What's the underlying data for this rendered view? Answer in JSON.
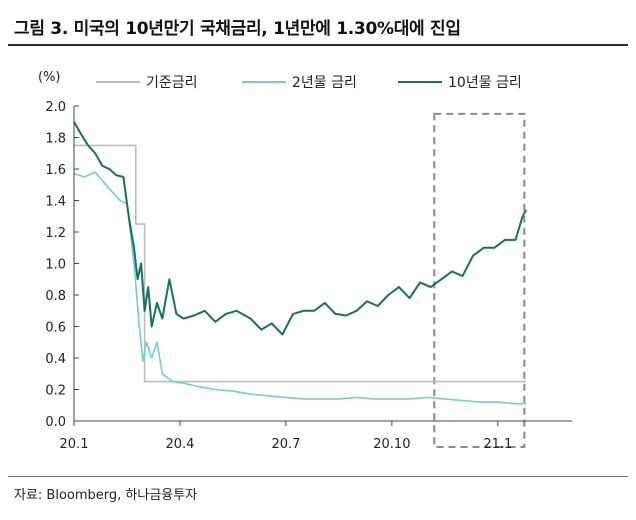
{
  "title": "그림 3. 미국의 10년만기 국채금리, 1년만에 1.30%대에 진입",
  "source": "자료: Bloomberg, 하나금융투자",
  "chart_data": {
    "type": "line",
    "title": "그림 3. 미국의 10년만기 국채금리, 1년만에 1.30%대에 진입",
    "ylabel": "(%)",
    "xlabel": "",
    "ylim": [
      0.0,
      2.0
    ],
    "yticks": [
      "0.0",
      "0.2",
      "0.4",
      "0.6",
      "0.8",
      "1.0",
      "1.2",
      "1.4",
      "1.6",
      "1.8",
      "2.0"
    ],
    "xlim": [
      0,
      14.1
    ],
    "xticks": [
      {
        "label": "20.1",
        "x": 0
      },
      {
        "label": "20.4",
        "x": 3
      },
      {
        "label": "20.7",
        "x": 6
      },
      {
        "label": "20.10",
        "x": 9
      },
      {
        "label": "21.1",
        "x": 12
      }
    ],
    "legend_position": "top",
    "highlight_box": {
      "x_range": [
        10.2,
        12.75
      ],
      "y_range": [
        0.0,
        1.95
      ],
      "style": "dashed"
    },
    "series": [
      {
        "name": "기준금리",
        "color": "#bdbdbd",
        "x": [
          0,
          1.75,
          1.75,
          2.0,
          2.0,
          2.2,
          2.2,
          12.8
        ],
        "values": [
          1.75,
          1.75,
          1.25,
          1.25,
          0.25,
          0.25,
          0.25,
          0.25
        ]
      },
      {
        "name": "2년물 금리",
        "color": "#6fd3c6",
        "x": [
          0,
          0.3,
          0.6,
          0.9,
          1.1,
          1.3,
          1.5,
          1.7,
          1.85,
          1.95,
          2.05,
          2.2,
          2.35,
          2.5,
          2.8,
          3.1,
          3.5,
          4.0,
          4.5,
          5.0,
          5.5,
          6.0,
          6.5,
          7.0,
          7.5,
          8.0,
          8.5,
          9.0,
          9.5,
          10.0,
          10.5,
          11.0,
          11.5,
          12.0,
          12.5,
          12.8
        ],
        "values": [
          1.57,
          1.55,
          1.58,
          1.5,
          1.45,
          1.4,
          1.38,
          1.0,
          0.6,
          0.38,
          0.5,
          0.4,
          0.5,
          0.3,
          0.25,
          0.24,
          0.22,
          0.2,
          0.19,
          0.17,
          0.16,
          0.15,
          0.14,
          0.14,
          0.14,
          0.15,
          0.14,
          0.14,
          0.14,
          0.15,
          0.14,
          0.13,
          0.12,
          0.12,
          0.11,
          0.11
        ]
      },
      {
        "name": "10년물 금리",
        "color": "#18715f",
        "x": [
          0,
          0.2,
          0.4,
          0.6,
          0.8,
          1.0,
          1.2,
          1.4,
          1.55,
          1.7,
          1.8,
          1.9,
          2.0,
          2.1,
          2.2,
          2.35,
          2.5,
          2.7,
          2.9,
          3.1,
          3.4,
          3.7,
          4.0,
          4.3,
          4.6,
          5.0,
          5.3,
          5.6,
          5.9,
          6.2,
          6.5,
          6.8,
          7.1,
          7.4,
          7.7,
          8.0,
          8.3,
          8.6,
          8.9,
          9.2,
          9.5,
          9.8,
          10.1,
          10.4,
          10.7,
          11.0,
          11.3,
          11.6,
          11.9,
          12.2,
          12.5,
          12.7,
          12.8
        ],
        "values": [
          1.9,
          1.82,
          1.75,
          1.7,
          1.62,
          1.6,
          1.56,
          1.55,
          1.3,
          1.1,
          0.9,
          1.0,
          0.7,
          0.85,
          0.6,
          0.75,
          0.65,
          0.9,
          0.68,
          0.65,
          0.67,
          0.7,
          0.63,
          0.68,
          0.7,
          0.65,
          0.58,
          0.62,
          0.55,
          0.68,
          0.7,
          0.7,
          0.75,
          0.68,
          0.67,
          0.7,
          0.76,
          0.73,
          0.8,
          0.85,
          0.78,
          0.88,
          0.85,
          0.9,
          0.95,
          0.92,
          1.05,
          1.1,
          1.1,
          1.15,
          1.15,
          1.3,
          1.34
        ]
      }
    ]
  }
}
